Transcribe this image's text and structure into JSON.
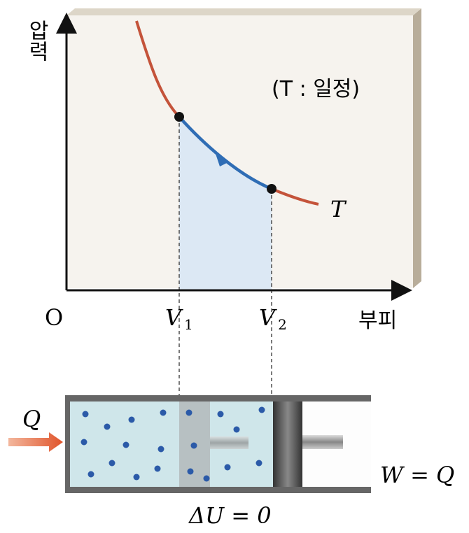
{
  "graph": {
    "y_axis_label": "압력",
    "x_axis_label": "부피",
    "origin": "O",
    "v1": {
      "symbol": "V",
      "subscript": "1"
    },
    "v2": {
      "symbol": "V",
      "subscript": "2"
    },
    "condition": "(T : 일정)",
    "curve_label": "T"
  },
  "cylinder": {
    "heat": "Q",
    "work": "W = Q",
    "energy_change": "ΔU = 0"
  }
}
